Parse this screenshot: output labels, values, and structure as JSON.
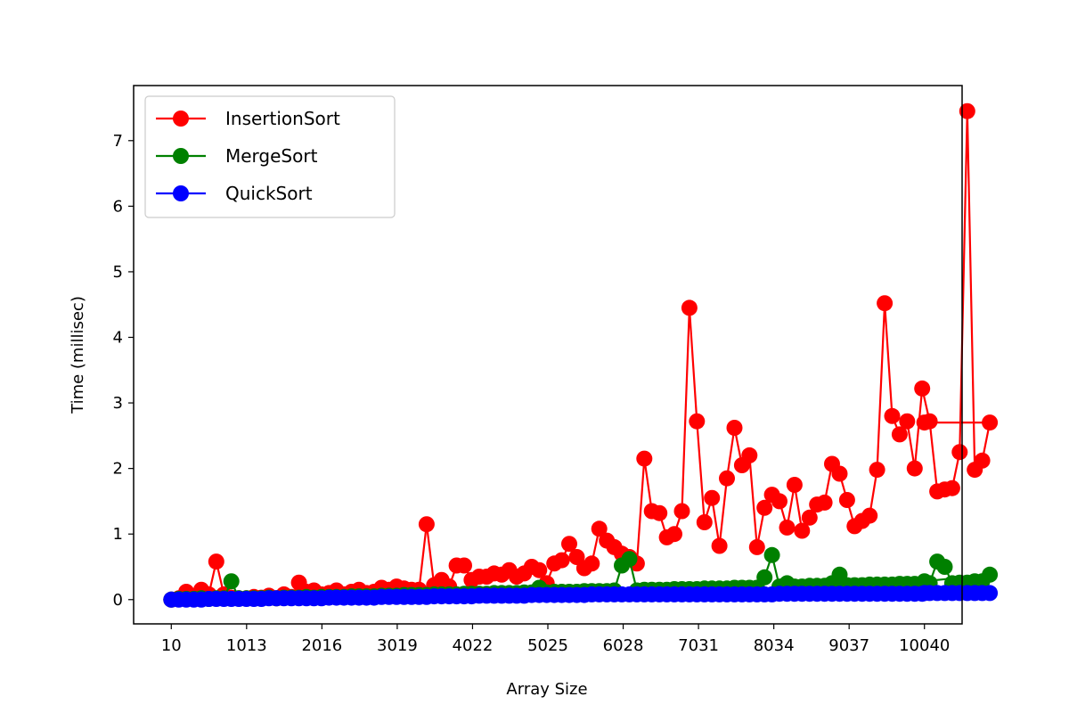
{
  "chart_data": {
    "type": "line",
    "title": "",
    "xlabel": "Array Size",
    "ylabel": "Time (millisec)",
    "xlim": [
      10,
      10040
    ],
    "ylim": [
      -0.37,
      7.84
    ],
    "xticks": [
      10,
      1013,
      2016,
      3019,
      4022,
      5025,
      6028,
      7031,
      8034,
      9037,
      10040
    ],
    "xtick_labels": [
      "10",
      "1013",
      "2016",
      "3019",
      "4022",
      "5025",
      "6028",
      "7031",
      "8034",
      "9037",
      "10040"
    ],
    "yticks": [
      0,
      1,
      2,
      3,
      4,
      5,
      6,
      7
    ],
    "ytick_labels": [
      "0",
      "1",
      "2",
      "3",
      "4",
      "5",
      "6",
      "7"
    ],
    "legend_position": "top-left",
    "x_step": 100,
    "series": [
      {
        "name": "InsertionSort",
        "color": "#ff0000",
        "values": [
          0.0,
          0.02,
          0.12,
          0.05,
          0.15,
          0.08,
          0.58,
          0.08,
          0.03,
          0.02,
          0.02,
          0.04,
          0.03,
          0.06,
          0.02,
          0.08,
          0.04,
          0.26,
          0.12,
          0.14,
          0.08,
          0.1,
          0.14,
          0.08,
          0.12,
          0.15,
          0.1,
          0.12,
          0.18,
          0.15,
          0.2,
          0.17,
          0.15,
          0.15,
          1.15,
          0.22,
          0.3,
          0.2,
          0.52,
          0.52,
          0.3,
          0.35,
          0.35,
          0.4,
          0.38,
          0.45,
          0.35,
          0.4,
          0.5,
          0.45,
          0.25,
          0.55,
          0.6,
          0.85,
          0.65,
          0.48,
          0.55,
          1.08,
          0.9,
          0.8,
          0.7,
          0.65,
          0.55,
          2.15,
          1.35,
          1.32,
          0.95,
          1.0,
          1.35,
          4.45,
          2.72,
          1.18,
          1.55,
          0.82,
          1.85,
          2.62,
          2.05,
          2.2,
          0.8,
          1.4,
          1.6,
          1.5,
          1.1,
          1.75,
          1.05,
          1.25,
          1.45,
          1.48,
          2.07,
          1.92,
          1.52,
          1.12,
          1.2,
          1.28,
          1.98,
          4.52,
          2.8,
          2.52,
          2.72,
          2.0,
          3.22,
          2.72,
          1.65,
          1.68,
          1.7,
          2.25,
          7.45,
          1.98,
          2.12,
          2.7,
          2.7
        ]
      },
      {
        "name": "MergeSort",
        "color": "#008000",
        "values": [
          0.0,
          0.01,
          0.01,
          0.01,
          0.02,
          0.01,
          0.02,
          0.02,
          0.28,
          0.02,
          0.02,
          0.02,
          0.02,
          0.03,
          0.02,
          0.03,
          0.03,
          0.03,
          0.04,
          0.03,
          0.04,
          0.04,
          0.04,
          0.04,
          0.05,
          0.05,
          0.05,
          0.05,
          0.06,
          0.06,
          0.06,
          0.07,
          0.07,
          0.07,
          0.07,
          0.08,
          0.08,
          0.08,
          0.08,
          0.09,
          0.09,
          0.09,
          0.09,
          0.1,
          0.1,
          0.1,
          0.1,
          0.11,
          0.11,
          0.18,
          0.11,
          0.12,
          0.12,
          0.12,
          0.12,
          0.13,
          0.13,
          0.13,
          0.13,
          0.14,
          0.52,
          0.62,
          0.14,
          0.15,
          0.15,
          0.15,
          0.15,
          0.16,
          0.16,
          0.16,
          0.16,
          0.17,
          0.17,
          0.17,
          0.17,
          0.18,
          0.18,
          0.18,
          0.18,
          0.34,
          0.68,
          0.2,
          0.25,
          0.2,
          0.2,
          0.21,
          0.21,
          0.21,
          0.25,
          0.38,
          0.22,
          0.22,
          0.22,
          0.23,
          0.23,
          0.23,
          0.23,
          0.24,
          0.24,
          0.24,
          0.24,
          0.25,
          0.58,
          0.5,
          0.25,
          0.26,
          0.26,
          0.28,
          0.28,
          0.38,
          0.28
        ]
      },
      {
        "name": "QuickSort",
        "color": "#0000ff",
        "values": [
          0.0,
          0.0,
          0.0,
          0.0,
          0.0,
          0.01,
          0.01,
          0.01,
          0.01,
          0.01,
          0.01,
          0.01,
          0.01,
          0.02,
          0.02,
          0.02,
          0.02,
          0.02,
          0.02,
          0.02,
          0.02,
          0.03,
          0.03,
          0.03,
          0.03,
          0.03,
          0.03,
          0.03,
          0.04,
          0.04,
          0.04,
          0.04,
          0.04,
          0.04,
          0.04,
          0.05,
          0.05,
          0.05,
          0.05,
          0.05,
          0.05,
          0.06,
          0.06,
          0.06,
          0.06,
          0.06,
          0.06,
          0.06,
          0.07,
          0.07,
          0.07,
          0.07,
          0.07,
          0.07,
          0.07,
          0.07,
          0.08,
          0.08,
          0.08,
          0.08,
          0.08,
          0.08,
          0.08,
          0.08,
          0.08,
          0.08,
          0.08,
          0.08,
          0.08,
          0.08,
          0.08,
          0.08,
          0.08,
          0.08,
          0.08,
          0.08,
          0.08,
          0.08,
          0.08,
          0.08,
          0.08,
          0.09,
          0.09,
          0.09,
          0.09,
          0.09,
          0.09,
          0.09,
          0.09,
          0.09,
          0.09,
          0.09,
          0.09,
          0.09,
          0.09,
          0.09,
          0.09,
          0.09,
          0.09,
          0.09,
          0.09,
          0.1,
          0.1,
          0.1,
          0.1,
          0.1,
          0.1,
          0.1,
          0.1,
          0.1,
          0.1
        ]
      }
    ]
  }
}
